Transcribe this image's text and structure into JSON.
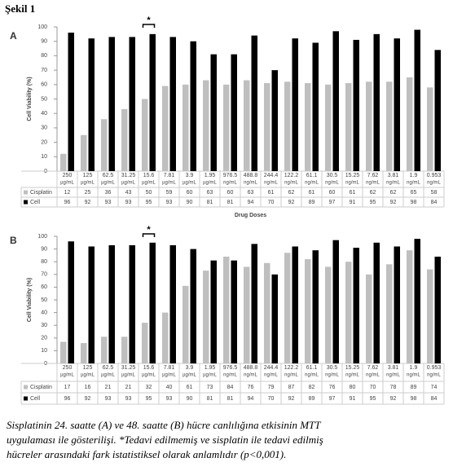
{
  "heading": "Şekil 1",
  "caption": [
    "Sisplatinin 24. saatte (A) ve 48. saatte (B) hücre canlılığına etkisinin MTT",
    "uygulaması ile gösterilişi. *Tedavi edilmemiş ve sisplatin ile tedavi edilmiş",
    "hücreler arasındaki fark istatistiksel olarak anlamlıdır (p<0,001)."
  ],
  "chart_data": [
    {
      "type": "bar",
      "panel": "A",
      "ylabel": "Cell Viability (%)",
      "xlabel": "Drug Doses",
      "categories": [
        "250",
        "125",
        "62.5",
        "31.25",
        "15.6",
        "7.81",
        "3.9",
        "1.95",
        "976.5",
        "488.8",
        "244.4",
        "122.2",
        "61.1",
        "30.5",
        "15.25",
        "7.62",
        "3.81",
        "1.9",
        "0.953"
      ],
      "category_units": [
        "µg/mL",
        "µg/mL",
        "µg/mL",
        "µg/mL",
        "µg/mL",
        "µg/mL",
        "µg/mL",
        "µg/mL",
        "ng/mL",
        "ng/mL",
        "ng/mL",
        "ng/mL",
        "ng/mL",
        "ng/mL",
        "ng/mL",
        "ng/mL",
        "ng/mL",
        "ng/mL",
        "ng/mL"
      ],
      "series": [
        {
          "name": "Cisplatin",
          "color": "#bfbfbf",
          "values": [
            12,
            25,
            36,
            43,
            50,
            59,
            60,
            63,
            60,
            63,
            61,
            62,
            61,
            60,
            61,
            62,
            62,
            65,
            58
          ]
        },
        {
          "name": "Cell",
          "color": "#000000",
          "values": [
            96,
            92,
            93,
            93,
            95,
            93,
            90,
            81,
            81,
            94,
            70,
            92,
            89,
            97,
            91,
            95,
            92,
            98,
            84
          ]
        }
      ],
      "ylim": [
        0,
        100
      ],
      "yticks": [
        0,
        10,
        20,
        30,
        40,
        50,
        60,
        70,
        80,
        90,
        100
      ],
      "annotations": [
        {
          "text": "*",
          "x": "15.6"
        }
      ]
    },
    {
      "type": "bar",
      "panel": "B",
      "ylabel": "Cell Viability (%)",
      "categories": [
        "250",
        "125",
        "62.5",
        "31.25",
        "15.6",
        "7.81",
        "3.9",
        "1.95",
        "976.5",
        "488.8",
        "244.4",
        "122.2",
        "61.1",
        "30.5",
        "15.25",
        "7.62",
        "3.81",
        "1.9",
        "0.953"
      ],
      "category_units": [
        "µg/mL",
        "µg/mL",
        "µg/mL",
        "µg/mL",
        "µg/mL",
        "µg/mL",
        "µg/mL",
        "µg/mL",
        "ng/mL",
        "ng/mL",
        "ng/mL",
        "ng/mL",
        "ng/mL",
        "ng/mL",
        "ng/mL",
        "ng/mL",
        "ng/mL",
        "ng/mL",
        "ng/mL"
      ],
      "series": [
        {
          "name": "Cisplatin",
          "color": "#bfbfbf",
          "values": [
            17,
            16,
            21,
            21,
            32,
            40,
            61,
            73,
            84,
            76,
            79,
            87,
            82,
            76,
            80,
            70,
            78,
            89,
            74
          ]
        },
        {
          "name": "Cell",
          "color": "#000000",
          "values": [
            96,
            92,
            93,
            93,
            95,
            93,
            90,
            81,
            81,
            94,
            70,
            92,
            89,
            97,
            91,
            95,
            92,
            98,
            84
          ]
        }
      ],
      "ylim": [
        0,
        100
      ],
      "yticks": [
        0,
        10,
        20,
        30,
        40,
        50,
        60,
        70,
        80,
        90,
        100
      ],
      "annotations": [
        {
          "text": "*",
          "x": "15.6"
        }
      ]
    }
  ]
}
